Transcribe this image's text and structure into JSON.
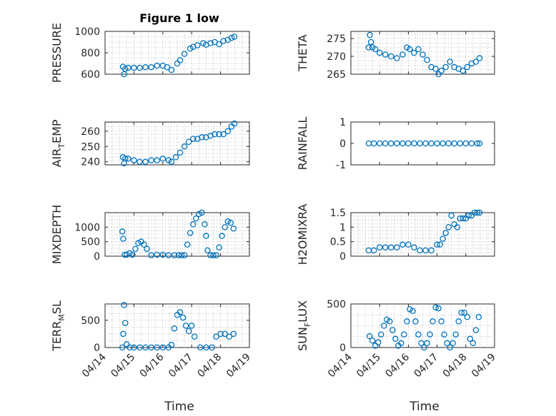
{
  "figure": {
    "title": "Figure 1 low",
    "xlabel": "Time",
    "marker_color": "#0072BD",
    "xticks": [
      "04/14",
      "04/15",
      "04/16",
      "04/17",
      "04/18",
      "04/19"
    ]
  },
  "chart_data": [
    {
      "type": "scatter",
      "ylabel": "PRESSURE",
      "ylim": [
        600,
        1000
      ],
      "yticks": [
        600,
        800,
        1000
      ],
      "xlim": [
        0,
        5
      ],
      "grid": true,
      "x": [
        0.62,
        0.66,
        0.7,
        0.8,
        1.0,
        1.2,
        1.4,
        1.6,
        1.8,
        2.0,
        2.15,
        2.3,
        2.5,
        2.6,
        2.75,
        2.95,
        3.05,
        3.2,
        3.4,
        3.5,
        3.65,
        3.8,
        3.95,
        4.1,
        4.25,
        4.38,
        4.48
      ],
      "y": [
        670,
        600,
        650,
        660,
        660,
        660,
        665,
        665,
        680,
        680,
        665,
        640,
        700,
        730,
        790,
        840,
        855,
        870,
        890,
        875,
        890,
        900,
        880,
        910,
        920,
        940,
        950
      ]
    },
    {
      "type": "scatter",
      "ylabel": "THETA",
      "ylim": [
        265,
        277
      ],
      "yticks": [
        265,
        270,
        275
      ],
      "xlim": [
        0,
        5
      ],
      "grid": true,
      "x": [
        0.62,
        0.66,
        0.7,
        0.75,
        0.85,
        1.0,
        1.2,
        1.4,
        1.6,
        1.8,
        1.95,
        2.05,
        2.2,
        2.35,
        2.5,
        2.65,
        2.8,
        2.95,
        3.05,
        3.15,
        3.3,
        3.45,
        3.6,
        3.75,
        3.9,
        4.05,
        4.2,
        4.35,
        4.48
      ],
      "y": [
        272.5,
        276,
        274,
        272.5,
        272,
        271,
        270.5,
        270,
        269.5,
        270.5,
        272.5,
        272,
        271,
        272,
        270.5,
        269,
        267,
        266.5,
        265,
        266,
        267,
        268.5,
        267,
        266.5,
        266,
        267,
        268,
        268.5,
        269.5
      ]
    },
    {
      "type": "scatter",
      "ylabel": "AIR_TEMP",
      "ylim": [
        238,
        266
      ],
      "yticks": [
        240,
        250,
        260
      ],
      "xlim": [
        0,
        5
      ],
      "grid": true,
      "x": [
        0.62,
        0.66,
        0.7,
        0.8,
        1.0,
        1.2,
        1.4,
        1.6,
        1.8,
        2.0,
        2.2,
        2.3,
        2.45,
        2.6,
        2.75,
        2.9,
        3.05,
        3.2,
        3.35,
        3.5,
        3.65,
        3.8,
        3.95,
        4.1,
        4.25,
        4.38,
        4.48
      ],
      "y": [
        243,
        239,
        242,
        242,
        241,
        240,
        240,
        241,
        241,
        242,
        241,
        240,
        243,
        246,
        250,
        253,
        255,
        255,
        256,
        256,
        257,
        258,
        258,
        258,
        260,
        263,
        265
      ]
    },
    {
      "type": "scatter",
      "ylabel": "RAINFALL",
      "ylim": [
        -1,
        1
      ],
      "yticks": [
        -1,
        0,
        1
      ],
      "xlim": [
        0,
        5
      ],
      "grid": false,
      "x": [
        0.62,
        0.8,
        1.0,
        1.2,
        1.4,
        1.6,
        1.8,
        2.0,
        2.2,
        2.4,
        2.6,
        2.8,
        3.0,
        3.2,
        3.4,
        3.6,
        3.8,
        4.0,
        4.2,
        4.4,
        4.48
      ],
      "y": [
        0,
        0,
        0,
        0,
        0,
        0,
        0,
        0,
        0,
        0,
        0,
        0,
        0,
        0,
        0,
        0,
        0,
        0,
        0,
        0,
        0
      ]
    },
    {
      "type": "scatter",
      "ylabel": "MIXDEPTH",
      "ylim": [
        0,
        1500
      ],
      "yticks": [
        0,
        500,
        1000
      ],
      "xlim": [
        0,
        5
      ],
      "grid": true,
      "x": [
        0.6,
        0.63,
        0.68,
        0.75,
        0.85,
        0.95,
        1.05,
        1.15,
        1.25,
        1.35,
        1.45,
        1.6,
        1.8,
        2.0,
        2.2,
        2.4,
        2.55,
        2.65,
        2.75,
        2.85,
        2.95,
        3.05,
        3.15,
        3.25,
        3.35,
        3.45,
        3.5,
        3.55,
        3.65,
        3.75,
        3.85,
        3.95,
        4.05,
        4.15,
        4.25,
        4.35,
        4.45
      ],
      "y": [
        850,
        600,
        50,
        50,
        100,
        50,
        250,
        450,
        500,
        400,
        250,
        30,
        50,
        50,
        30,
        30,
        30,
        30,
        30,
        400,
        800,
        1100,
        1300,
        1450,
        1500,
        1100,
        700,
        200,
        30,
        30,
        30,
        300,
        700,
        1000,
        1200,
        1150,
        950
      ]
    },
    {
      "type": "scatter",
      "ylabel": "H2OMIXRA",
      "ylim": [
        0,
        1.5
      ],
      "yticks": [
        0,
        0.5,
        1,
        1.5
      ],
      "xlim": [
        0,
        5
      ],
      "grid": true,
      "x": [
        0.62,
        0.8,
        1.0,
        1.2,
        1.4,
        1.6,
        1.8,
        2.0,
        2.2,
        2.4,
        2.6,
        2.8,
        3.0,
        3.1,
        3.2,
        3.3,
        3.4,
        3.5,
        3.6,
        3.7,
        3.8,
        3.9,
        4.0,
        4.1,
        4.2,
        4.3,
        4.4,
        4.48
      ],
      "y": [
        0.2,
        0.2,
        0.3,
        0.3,
        0.3,
        0.3,
        0.4,
        0.4,
        0.3,
        0.2,
        0.2,
        0.2,
        0.4,
        0.4,
        0.6,
        0.8,
        1.0,
        1.4,
        1.1,
        1.0,
        1.3,
        1.3,
        1.3,
        1.4,
        1.4,
        1.5,
        1.5,
        1.5
      ]
    },
    {
      "type": "scatter",
      "ylabel": "TERR_MSL",
      "ylim": [
        0,
        800
      ],
      "yticks": [
        0,
        500
      ],
      "xlim": [
        0,
        5
      ],
      "grid": true,
      "x": [
        0.6,
        0.63,
        0.66,
        0.7,
        0.75,
        0.85,
        1.0,
        1.2,
        1.4,
        1.6,
        1.8,
        2.0,
        2.2,
        2.3,
        2.4,
        2.5,
        2.6,
        2.7,
        2.8,
        2.9,
        3.0,
        3.1,
        3.3,
        3.5,
        3.7,
        3.85,
        4.0,
        4.15,
        4.3,
        4.45
      ],
      "y": [
        0,
        250,
        780,
        450,
        60,
        0,
        0,
        0,
        0,
        0,
        0,
        0,
        0,
        50,
        350,
        600,
        650,
        550,
        400,
        300,
        400,
        200,
        0,
        0,
        0,
        200,
        250,
        250,
        200,
        250
      ]
    },
    {
      "type": "scatter",
      "ylabel": "SUN_FLUX",
      "ylim": [
        0,
        500
      ],
      "yticks": [
        0,
        500
      ],
      "xlim": [
        0,
        5
      ],
      "grid": true,
      "x": [
        0.65,
        0.75,
        0.85,
        0.95,
        1.05,
        1.15,
        1.25,
        1.35,
        1.45,
        1.55,
        1.65,
        1.75,
        1.85,
        1.95,
        2.05,
        2.15,
        2.25,
        2.35,
        2.45,
        2.55,
        2.65,
        2.75,
        2.85,
        2.95,
        3.05,
        3.15,
        3.25,
        3.35,
        3.45,
        3.55,
        3.65,
        3.75,
        3.85,
        3.95,
        4.05,
        4.15,
        4.25,
        4.35,
        4.45
      ],
      "y": [
        130,
        80,
        20,
        60,
        150,
        250,
        320,
        300,
        200,
        100,
        20,
        50,
        150,
        300,
        440,
        420,
        300,
        150,
        50,
        0,
        50,
        150,
        300,
        460,
        450,
        300,
        150,
        50,
        0,
        50,
        150,
        300,
        400,
        400,
        350,
        100,
        50,
        200,
        350
      ]
    }
  ]
}
